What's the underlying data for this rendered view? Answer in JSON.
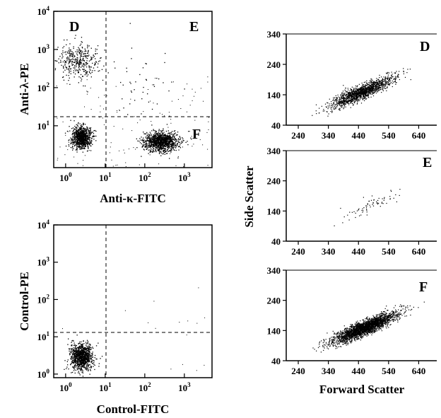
{
  "chart_data": [
    {
      "type": "scatter",
      "panel": "top-left",
      "xlabel": "Anti-κ-FITC",
      "ylabel": "Anti-λ-PE",
      "xscale": "log",
      "yscale": "log",
      "xlim": [
        0.5,
        5000
      ],
      "ylim": [
        0.8,
        10000
      ],
      "x_ticks": [
        {
          "base": "10",
          "exp": "0",
          "v": 1
        },
        {
          "base": "10",
          "exp": "1",
          "v": 10
        },
        {
          "base": "10",
          "exp": "2",
          "v": 100
        },
        {
          "base": "10",
          "exp": "3",
          "v": 1000
        }
      ],
      "y_ticks": [
        {
          "base": "10",
          "exp": "1",
          "v": 10
        },
        {
          "base": "10",
          "exp": "2",
          "v": 100
        },
        {
          "base": "10",
          "exp": "3",
          "v": 1000
        },
        {
          "base": "10",
          "exp": "4",
          "v": 10000
        }
      ],
      "gates": {
        "x": 10,
        "y": 20
      },
      "quadrant_labels": [
        "D",
        "E",
        "F"
      ],
      "populations": [
        {
          "quadrant": "D",
          "center": [
            2,
            500
          ],
          "density": "moderate"
        },
        {
          "quadrant": "F-left",
          "center": [
            2.5,
            5
          ],
          "density": "high"
        },
        {
          "quadrant": "F",
          "center": [
            250,
            4
          ],
          "density": "high"
        },
        {
          "quadrant": "E",
          "center": [
            80,
            150
          ],
          "density": "sparse"
        }
      ]
    },
    {
      "type": "scatter",
      "panel": "bottom-left",
      "xlabel": "Control-FITC",
      "ylabel": "Control-PE",
      "xscale": "log",
      "yscale": "log",
      "xlim": [
        0.5,
        5000
      ],
      "ylim": [
        0.8,
        10000
      ],
      "x_ticks": [
        {
          "base": "10",
          "exp": "0",
          "v": 1
        },
        {
          "base": "10",
          "exp": "1",
          "v": 10
        },
        {
          "base": "10",
          "exp": "2",
          "v": 100
        },
        {
          "base": "10",
          "exp": "3",
          "v": 1000
        }
      ],
      "y_ticks": [
        {
          "base": "10",
          "exp": "0",
          "v": 1
        },
        {
          "base": "10",
          "exp": "1",
          "v": 10
        },
        {
          "base": "10",
          "exp": "2",
          "v": 100
        },
        {
          "base": "10",
          "exp": "3",
          "v": 1000
        },
        {
          "base": "10",
          "exp": "4",
          "v": 10000
        }
      ],
      "gates": {
        "x": 10,
        "y": 20
      },
      "populations": [
        {
          "quadrant": "lower-left",
          "center": [
            2.5,
            3
          ],
          "density": "high"
        }
      ]
    },
    {
      "type": "scatter",
      "panel": "right",
      "xlabel": "Forward Scatter",
      "ylabel": "Side Scatter",
      "xlim": [
        200,
        700
      ],
      "ylim": [
        40,
        340
      ],
      "x_ticks": [
        "240",
        "340",
        "440",
        "540",
        "640"
      ],
      "y_ticks": [
        "40",
        "140",
        "240",
        "340"
      ],
      "subplots": [
        {
          "label": "D",
          "center": [
            450,
            150
          ],
          "density": "moderate"
        },
        {
          "label": "E",
          "center": [
            480,
            160
          ],
          "density": "sparse"
        },
        {
          "label": "F",
          "center": [
            460,
            150
          ],
          "density": "high"
        }
      ]
    }
  ]
}
